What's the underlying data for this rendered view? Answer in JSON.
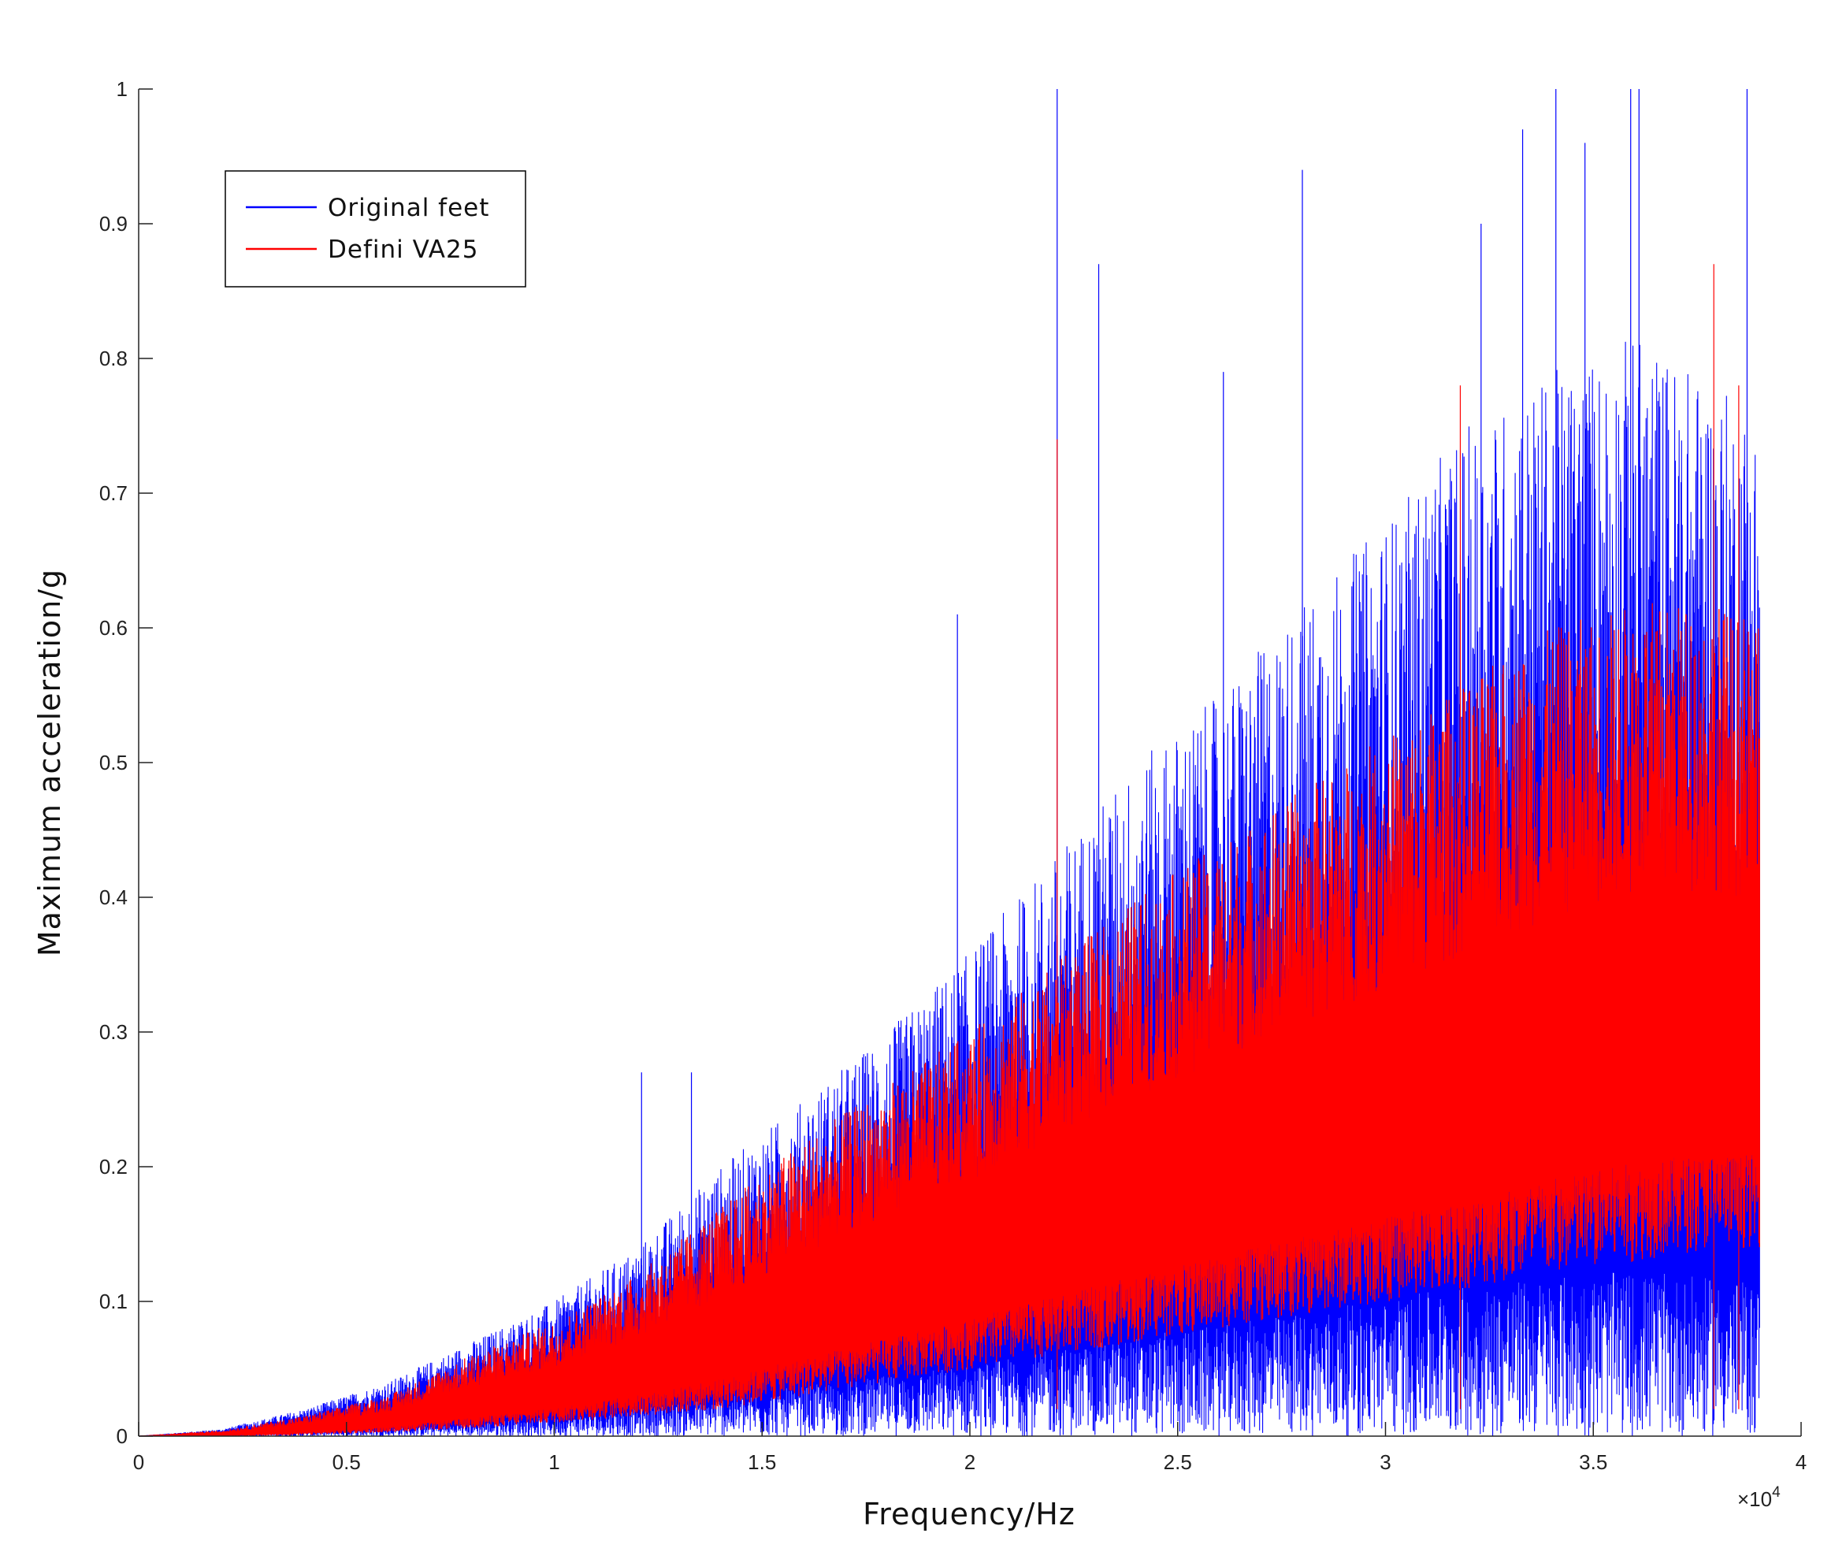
{
  "chart_data": {
    "type": "line",
    "xlabel": "Frequency/Hz",
    "ylabel": "Maximum acceleration/g",
    "x_exponent_label": "×10",
    "x_exponent_power": "4",
    "xlim": [
      0,
      40000
    ],
    "ylim": [
      0,
      1
    ],
    "x_ticks": [
      0,
      5000,
      10000,
      15000,
      20000,
      25000,
      30000,
      35000,
      40000
    ],
    "x_tick_labels": [
      "0",
      "0.5",
      "1",
      "1.5",
      "2",
      "2.5",
      "3",
      "3.5",
      "4"
    ],
    "y_ticks": [
      0,
      0.1,
      0.2,
      0.3,
      0.4,
      0.5,
      0.6,
      0.7,
      0.8,
      0.9,
      1
    ],
    "y_tick_labels": [
      "0",
      "0.1",
      "0.2",
      "0.3",
      "0.4",
      "0.5",
      "0.6",
      "0.7",
      "0.8",
      "0.9",
      "1"
    ],
    "grid": false,
    "legend_placement": "top-left",
    "x_data_max": 39000,
    "series": [
      {
        "name": "Original feet",
        "color": "#0000ff",
        "envelope": {
          "x": [
            0,
            2000,
            4000,
            6000,
            8000,
            10000,
            12000,
            14000,
            16000,
            18000,
            20000,
            22000,
            24000,
            26000,
            28000,
            30000,
            32000,
            34000,
            36000,
            38000,
            39000
          ],
          "upper": [
            0.0,
            0.005,
            0.02,
            0.04,
            0.07,
            0.1,
            0.14,
            0.2,
            0.25,
            0.3,
            0.36,
            0.43,
            0.5,
            0.55,
            0.62,
            0.68,
            0.75,
            0.79,
            0.82,
            0.78,
            0.76
          ],
          "lower": [
            0.0,
            0.0,
            0.0,
            0.0,
            0.0,
            0.0,
            0.0,
            0.0,
            0.0,
            0.0,
            0.0,
            0.0,
            0.0,
            0.0,
            0.0,
            0.0,
            0.0,
            0.0,
            0.0,
            0.0,
            0.0
          ]
        },
        "peaks": [
          {
            "x": 12100,
            "y": 0.27
          },
          {
            "x": 13300,
            "y": 0.27
          },
          {
            "x": 19700,
            "y": 0.61
          },
          {
            "x": 22100,
            "y": 1.0
          },
          {
            "x": 23100,
            "y": 0.87
          },
          {
            "x": 26100,
            "y": 0.79
          },
          {
            "x": 28000,
            "y": 0.94
          },
          {
            "x": 32300,
            "y": 0.9
          },
          {
            "x": 33300,
            "y": 0.97
          },
          {
            "x": 34100,
            "y": 1.0
          },
          {
            "x": 34800,
            "y": 0.96
          },
          {
            "x": 35900,
            "y": 1.0
          },
          {
            "x": 36100,
            "y": 1.0
          },
          {
            "x": 38700,
            "y": 1.0
          }
        ]
      },
      {
        "name": "Defini VA25",
        "color": "#ff0000",
        "envelope": {
          "x": [
            0,
            2000,
            4000,
            6000,
            8000,
            10000,
            12000,
            14000,
            16000,
            18000,
            20000,
            22000,
            24000,
            26000,
            28000,
            30000,
            32000,
            34000,
            36000,
            38000,
            39000
          ],
          "upper": [
            0.0,
            0.004,
            0.015,
            0.03,
            0.06,
            0.085,
            0.12,
            0.17,
            0.22,
            0.26,
            0.3,
            0.35,
            0.4,
            0.44,
            0.48,
            0.52,
            0.56,
            0.6,
            0.62,
            0.62,
            0.6
          ],
          "lower": [
            0.0,
            0.0,
            0.001,
            0.003,
            0.006,
            0.01,
            0.015,
            0.02,
            0.03,
            0.04,
            0.05,
            0.06,
            0.07,
            0.08,
            0.09,
            0.1,
            0.11,
            0.12,
            0.13,
            0.14,
            0.14
          ]
        },
        "peaks": [
          {
            "x": 22100,
            "y": 0.74
          },
          {
            "x": 31800,
            "y": 0.78
          },
          {
            "x": 37900,
            "y": 0.87
          },
          {
            "x": 38500,
            "y": 0.78
          }
        ]
      }
    ]
  }
}
